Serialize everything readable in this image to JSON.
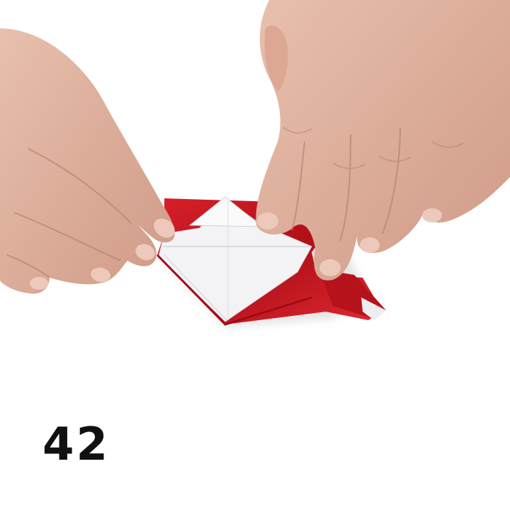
{
  "step": {
    "number": "42"
  },
  "colors": {
    "background": "#ffffff",
    "paper_red": "#c8141c",
    "paper_red_dark": "#9a0c12",
    "paper_white": "#f4f4f6",
    "skin": "#e0b3a0",
    "skin_shadow": "#c48f7c",
    "text": "#111111"
  }
}
